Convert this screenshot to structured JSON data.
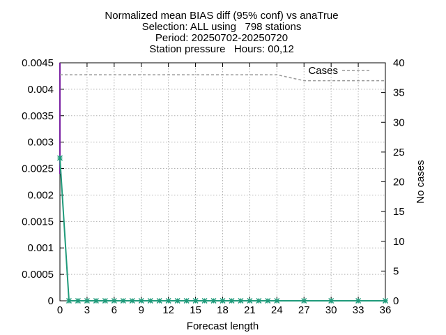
{
  "chart_data": {
    "type": "line",
    "title_lines": [
      "Normalized mean BIAS diff (95% conf) vs anaTrue",
      "Selection: ALL using   798 stations",
      "Period: 20250702-20250720",
      "Station pressure   Hours: 00,12"
    ],
    "xlabel": "Forecast length",
    "ylabel": "",
    "y2label": "No cases",
    "xlim": [
      0,
      36
    ],
    "ylim": [
      0,
      0.0045
    ],
    "y2lim": [
      0,
      40
    ],
    "x_ticks": [
      0,
      3,
      6,
      9,
      12,
      15,
      18,
      21,
      24,
      27,
      30,
      33,
      36
    ],
    "y_ticks": [
      0,
      0.0005,
      0.001,
      0.0015,
      0.002,
      0.0025,
      0.003,
      0.0035,
      0.004,
      0.0045
    ],
    "y_tick_labels": [
      "0",
      "0.0005",
      "0.001",
      "0.0015",
      "0.002",
      "0.0025",
      "0.003",
      "0.0035",
      "0.004",
      "0.0045"
    ],
    "y2_ticks": [
      0,
      5,
      10,
      15,
      20,
      25,
      30,
      35,
      40
    ],
    "grid": true,
    "legend_position": "top-right",
    "series": [
      {
        "color": "#1f9a7a",
        "marker": "star",
        "x": [
          0,
          1,
          2,
          3,
          4,
          5,
          6,
          7,
          8,
          9,
          10,
          11,
          12,
          13,
          14,
          15,
          16,
          17,
          18,
          19,
          20,
          21,
          22,
          23,
          24,
          27,
          30,
          33,
          36
        ],
        "values": [
          0.0027,
          0,
          0,
          0,
          0,
          0,
          0,
          0,
          0,
          0,
          0,
          0,
          0,
          0,
          0,
          0,
          0,
          0,
          0,
          0,
          0,
          0,
          0,
          0,
          0,
          0,
          0,
          0,
          0
        ]
      },
      {
        "name": "Cases",
        "axis": "y2",
        "color": "#999999",
        "style": "dashed",
        "x": [
          0,
          24,
          27,
          36
        ],
        "values": [
          38,
          38,
          37,
          37
        ]
      }
    ],
    "error_bars": {
      "color": "#7a1fa2",
      "x": [
        0
      ],
      "low": [
        0.0024
      ],
      "high": [
        0.0045
      ]
    }
  }
}
